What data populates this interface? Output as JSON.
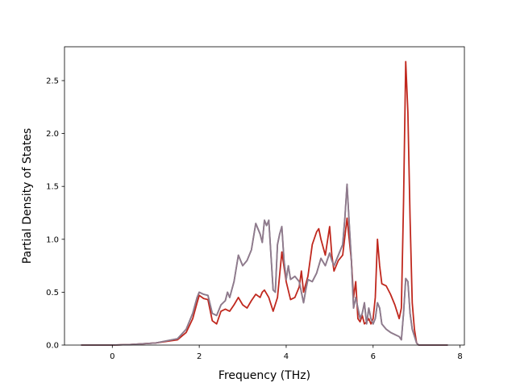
{
  "chart_data": {
    "type": "line",
    "title": "",
    "xlabel": "Frequency (THz)",
    "ylabel": "Partial Density of States",
    "xlim": [
      -1.1,
      8.1
    ],
    "ylim": [
      0.0,
      2.82
    ],
    "xticks": [
      0,
      2,
      4,
      6,
      8
    ],
    "xtick_labels": [
      "0",
      "2",
      "4",
      "6",
      "8"
    ],
    "yticks": [
      0.0,
      0.5,
      1.0,
      1.5,
      2.0,
      2.5
    ],
    "ytick_labels": [
      "0.0",
      "0.5",
      "1.0",
      "1.5",
      "2.0",
      "2.5"
    ],
    "grid": false,
    "legend": "none",
    "series": [
      {
        "color": "#7f7f7f",
        "x": [
          -0.72,
          0.0,
          0.4,
          1.0,
          1.5,
          1.7,
          1.85,
          1.95,
          2.0,
          2.1,
          2.2,
          2.3,
          2.4,
          2.5,
          2.6,
          2.65,
          2.7,
          2.8,
          2.9,
          3.0,
          3.1,
          3.2,
          3.3,
          3.4,
          3.45,
          3.5,
          3.55,
          3.6,
          3.7,
          3.75,
          3.8,
          3.85,
          3.9,
          3.95,
          4.0,
          4.05,
          4.1,
          4.2,
          4.3,
          4.4,
          4.45,
          4.5,
          4.6,
          4.7,
          4.8,
          4.9,
          5.0,
          5.05,
          5.1,
          5.2,
          5.3,
          5.35,
          5.4,
          5.45,
          5.5,
          5.55,
          5.6,
          5.65,
          5.7,
          5.75,
          5.8,
          5.85,
          5.9,
          5.95,
          6.0,
          6.05,
          6.1,
          6.15,
          6.2,
          6.3,
          6.4,
          6.5,
          6.6,
          6.65,
          6.7,
          6.75,
          6.8,
          6.85,
          6.9,
          7.0,
          7.05,
          7.4,
          7.72
        ],
        "y": [
          0.0,
          0.0,
          0.005,
          0.02,
          0.06,
          0.15,
          0.3,
          0.45,
          0.5,
          0.48,
          0.47,
          0.3,
          0.28,
          0.38,
          0.42,
          0.5,
          0.45,
          0.6,
          0.85,
          0.75,
          0.8,
          0.9,
          1.15,
          1.05,
          0.97,
          1.18,
          1.13,
          1.18,
          0.52,
          0.5,
          0.95,
          1.05,
          1.12,
          0.8,
          0.62,
          0.75,
          0.62,
          0.65,
          0.6,
          0.4,
          0.52,
          0.62,
          0.6,
          0.68,
          0.82,
          0.75,
          0.87,
          0.8,
          0.75,
          0.85,
          0.95,
          1.2,
          1.52,
          1.15,
          0.8,
          0.35,
          0.45,
          0.35,
          0.25,
          0.3,
          0.4,
          0.2,
          0.35,
          0.25,
          0.2,
          0.25,
          0.4,
          0.35,
          0.2,
          0.15,
          0.12,
          0.1,
          0.08,
          0.05,
          0.3,
          0.63,
          0.6,
          0.3,
          0.15,
          0.02,
          0.0,
          0.0,
          0.0
        ]
      },
      {
        "color": "#c0281e",
        "x": [
          -0.72,
          0.0,
          0.4,
          1.0,
          1.5,
          1.7,
          1.85,
          1.95,
          2.0,
          2.1,
          2.2,
          2.3,
          2.4,
          2.5,
          2.6,
          2.7,
          2.8,
          2.9,
          3.0,
          3.1,
          3.2,
          3.3,
          3.4,
          3.45,
          3.5,
          3.6,
          3.7,
          3.8,
          3.9,
          4.0,
          4.1,
          4.2,
          4.3,
          4.35,
          4.4,
          4.5,
          4.6,
          4.7,
          4.75,
          4.8,
          4.9,
          5.0,
          5.05,
          5.1,
          5.2,
          5.3,
          5.4,
          5.45,
          5.5,
          5.55,
          5.6,
          5.65,
          5.7,
          5.75,
          5.8,
          5.85,
          5.9,
          5.95,
          6.0,
          6.05,
          6.1,
          6.15,
          6.2,
          6.3,
          6.4,
          6.5,
          6.6,
          6.65,
          6.7,
          6.75,
          6.8,
          6.85,
          6.9,
          6.95,
          7.0,
          7.05,
          7.4,
          7.72
        ],
        "y": [
          0.0,
          0.0,
          0.005,
          0.02,
          0.05,
          0.12,
          0.25,
          0.4,
          0.47,
          0.44,
          0.43,
          0.23,
          0.2,
          0.32,
          0.34,
          0.32,
          0.38,
          0.45,
          0.38,
          0.35,
          0.42,
          0.48,
          0.45,
          0.5,
          0.52,
          0.45,
          0.32,
          0.45,
          0.88,
          0.6,
          0.43,
          0.45,
          0.55,
          0.7,
          0.5,
          0.65,
          0.95,
          1.07,
          1.1,
          1.0,
          0.85,
          1.12,
          0.85,
          0.7,
          0.8,
          0.85,
          1.2,
          1.0,
          0.8,
          0.45,
          0.6,
          0.25,
          0.22,
          0.28,
          0.2,
          0.22,
          0.25,
          0.2,
          0.25,
          0.45,
          1.0,
          0.75,
          0.58,
          0.56,
          0.48,
          0.38,
          0.25,
          0.35,
          1.35,
          2.68,
          2.2,
          1.2,
          0.4,
          0.15,
          0.02,
          0.0,
          0.0,
          0.0
        ]
      },
      {
        "color": "#8f7a8d",
        "x": [
          -0.72,
          0.0,
          0.4,
          1.0,
          1.5,
          1.7,
          1.85,
          1.95,
          2.0,
          2.1,
          2.2,
          2.3,
          2.4,
          2.5,
          2.6,
          2.65,
          2.7,
          2.8,
          2.9,
          3.0,
          3.1,
          3.2,
          3.3,
          3.4,
          3.45,
          3.5,
          3.55,
          3.6,
          3.7,
          3.75,
          3.8,
          3.85,
          3.9,
          3.95,
          4.0,
          4.05,
          4.1,
          4.2,
          4.3,
          4.4,
          4.45,
          4.5,
          4.6,
          4.7,
          4.8,
          4.9,
          5.0,
          5.05,
          5.1,
          5.2,
          5.3,
          5.35,
          5.4,
          5.45,
          5.5,
          5.55,
          5.6,
          5.65,
          5.7,
          5.75,
          5.8,
          5.85,
          5.9,
          5.95,
          6.0,
          6.05,
          6.1,
          6.15,
          6.2,
          6.3,
          6.4,
          6.5,
          6.6,
          6.65,
          6.7,
          6.75,
          6.8,
          6.85,
          6.9,
          7.0,
          7.05,
          7.4,
          7.72
        ],
        "y": [
          0.0,
          0.0,
          0.005,
          0.02,
          0.06,
          0.15,
          0.3,
          0.45,
          0.5,
          0.48,
          0.47,
          0.3,
          0.28,
          0.38,
          0.42,
          0.5,
          0.45,
          0.6,
          0.85,
          0.75,
          0.8,
          0.9,
          1.15,
          1.05,
          0.97,
          1.18,
          1.13,
          1.18,
          0.52,
          0.5,
          0.95,
          1.05,
          1.12,
          0.8,
          0.62,
          0.75,
          0.62,
          0.65,
          0.6,
          0.4,
          0.52,
          0.62,
          0.6,
          0.68,
          0.82,
          0.75,
          0.87,
          0.8,
          0.75,
          0.85,
          0.95,
          1.2,
          1.52,
          1.15,
          0.8,
          0.35,
          0.45,
          0.35,
          0.25,
          0.3,
          0.4,
          0.2,
          0.35,
          0.25,
          0.2,
          0.25,
          0.4,
          0.35,
          0.2,
          0.15,
          0.12,
          0.1,
          0.08,
          0.05,
          0.3,
          0.63,
          0.6,
          0.3,
          0.15,
          0.02,
          0.0,
          0.0,
          0.0
        ]
      }
    ]
  }
}
